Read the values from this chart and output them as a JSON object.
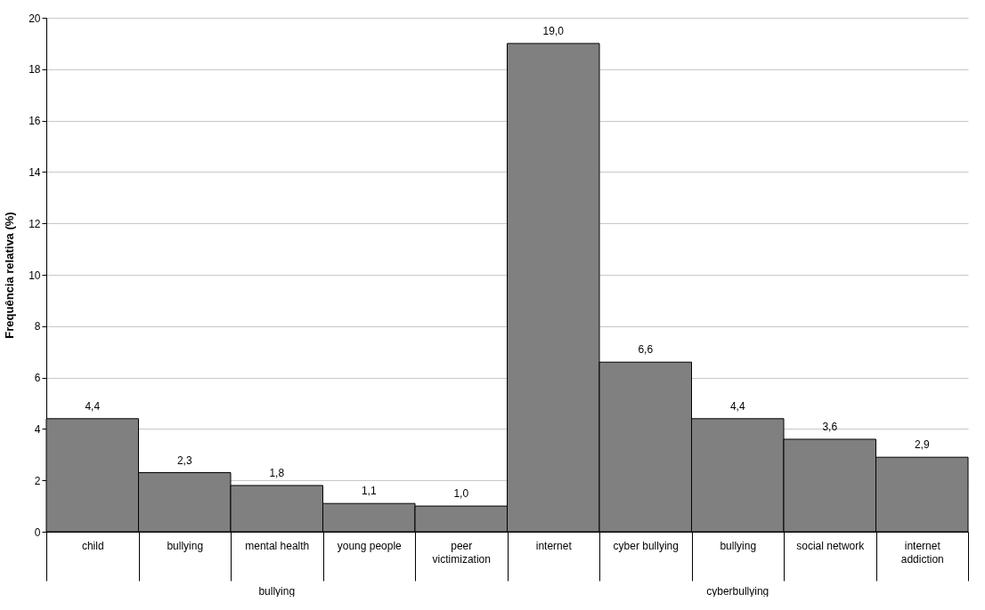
{
  "chart_data": {
    "type": "bar",
    "ylabel": "Frequência relativa (%)",
    "categories": [
      "child",
      "bullying",
      "mental health",
      "young people",
      "peer victimization",
      "internet",
      "cyber bullying",
      "bullying",
      "social network",
      "internet addiction"
    ],
    "values": [
      4.4,
      2.3,
      1.8,
      1.1,
      1.0,
      19.0,
      6.6,
      4.4,
      3.6,
      2.9
    ],
    "value_labels": [
      "4,4",
      "2,3",
      "1,8",
      "1,1",
      "1,0",
      "19,0",
      "6,6",
      "4,4",
      "3,6",
      "2,9"
    ],
    "color": "#808080",
    "ylim": [
      0,
      20
    ],
    "yticks": [
      0,
      2,
      4,
      6,
      8,
      10,
      12,
      14,
      16,
      18,
      20
    ],
    "grid": "y",
    "annotations": [
      "bullying",
      "cyberbullying"
    ]
  }
}
